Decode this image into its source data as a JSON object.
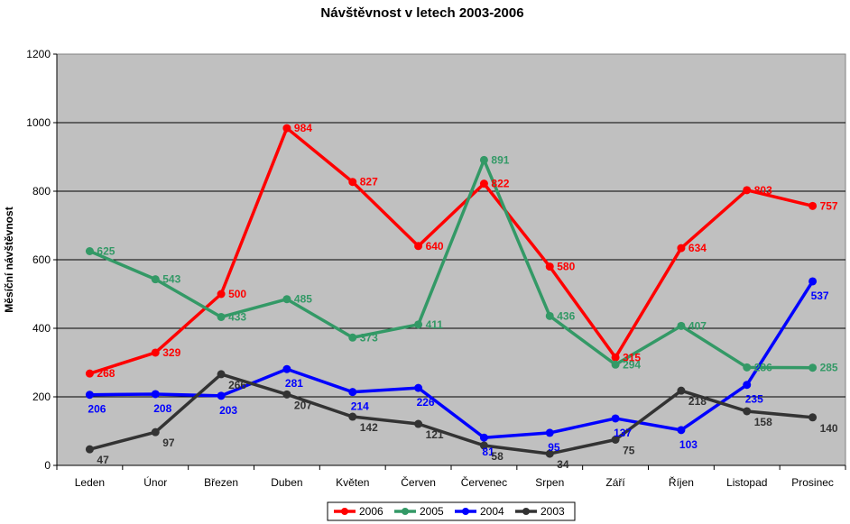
{
  "chart_data": {
    "type": "line",
    "title": "Návštěvnost v letech 2003-2006",
    "xlabel": "",
    "ylabel": "Měsíční návštěvnost",
    "ylim": [
      0,
      1200
    ],
    "yticks": [
      0,
      200,
      400,
      600,
      800,
      1000,
      1200
    ],
    "grid": true,
    "legend": "bottom",
    "categories": [
      "Leden",
      "Únor",
      "Březen",
      "Duben",
      "Květen",
      "Červen",
      "Červenec",
      "Srpen",
      "Září",
      "Říjen",
      "Listopad",
      "Prosinec"
    ],
    "series": [
      {
        "name": "2006",
        "color": "#ff0000",
        "values": [
          268,
          329,
          500,
          984,
          827,
          640,
          822,
          580,
          315,
          634,
          803,
          757
        ]
      },
      {
        "name": "2005",
        "color": "#339966",
        "values": [
          625,
          543,
          433,
          485,
          373,
          411,
          891,
          436,
          294,
          407,
          286,
          285
        ]
      },
      {
        "name": "2004",
        "color": "#0000ff",
        "values": [
          206,
          208,
          203,
          281,
          214,
          226,
          81,
          95,
          137,
          103,
          235,
          537
        ]
      },
      {
        "name": "2003",
        "color": "#333333",
        "values": [
          47,
          97,
          266,
          207,
          142,
          121,
          58,
          34,
          75,
          218,
          158,
          140
        ]
      }
    ]
  }
}
